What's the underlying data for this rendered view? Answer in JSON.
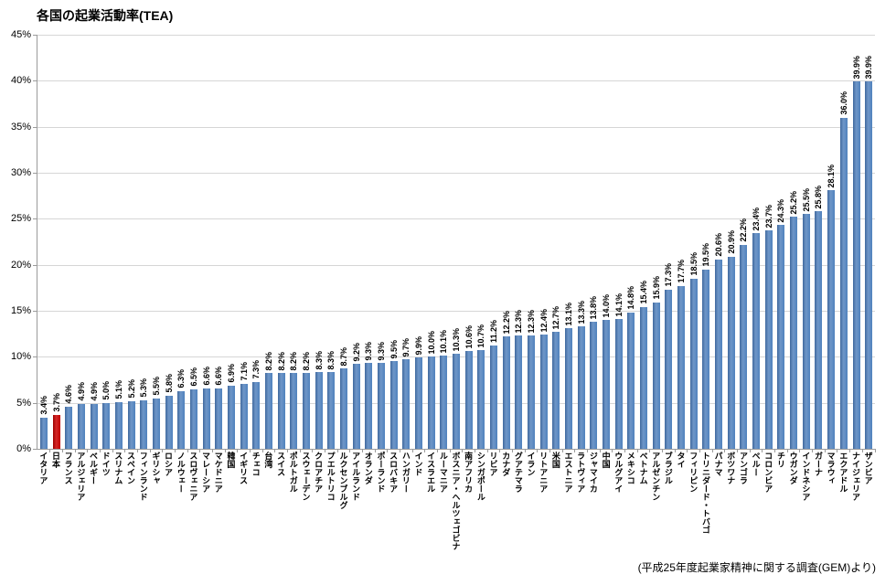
{
  "title": "各国の起業活動率(TEA)",
  "source_note": "(平成25年度起業家精神に関する調査(GEM)より)",
  "colors": {
    "bar": "#4F81BD",
    "bar_gradient_dark": "#40699E",
    "bar_gradient_light": "#6F97C8",
    "highlight": "#C00000",
    "highlight_gradient_dark": "#A00000",
    "highlight_gradient_light": "#D42A2A",
    "gridline": "#D6D6D6",
    "axis": "#9B9B9B",
    "text": "#000000"
  },
  "y_axis": {
    "ticks": [
      "45%",
      "40%",
      "35%",
      "30%",
      "25%",
      "20%",
      "15%",
      "10%",
      "5%",
      "0%"
    ],
    "min": 0,
    "max": 45,
    "step": 5
  },
  "chart_data": {
    "type": "bar",
    "title": "各国の起業活動率(TEA)",
    "xlabel": "",
    "ylabel": "",
    "unit": "%",
    "ylim": [
      0,
      45
    ],
    "grid": true,
    "legend": "none",
    "highlight_category": "日本",
    "highlight_index": 1,
    "categories": [
      "イタリア",
      "日本",
      "フランス",
      "アルジェリア",
      "ベルギー",
      "ドイツ",
      "スリナム",
      "スペイン",
      "フィンランド",
      "ギリシャ",
      "ロシア",
      "ノルウェー",
      "スロヴェニア",
      "マレーシア",
      "マケドニア",
      "韓国",
      "イギリス",
      "チェコ",
      "台湾",
      "スイス",
      "ポルトガル",
      "スウェーデン",
      "クロアチア",
      "プエルトリコ",
      "ルクセンブルグ",
      "アイルランド",
      "オランダ",
      "ポーランド",
      "スロバキア",
      "ハンガリー",
      "インド",
      "イスラエル",
      "ルーマニア",
      "ボスニア・ヘルツェゴビナ",
      "南アフリカ",
      "シンガポール",
      "リビア",
      "カナダ",
      "グアテマラ",
      "イラン",
      "リトアニア",
      "米国",
      "エストニア",
      "ラトヴィア",
      "ジャマイカ",
      "中国",
      "ウルグアイ",
      "メキシコ",
      "ベトナム",
      "アルゼンチン",
      "ブラジル",
      "タイ",
      "フィリピン",
      "トリニダード・トバゴ",
      "パナマ",
      "ボツワナ",
      "アンゴラ",
      "ペルー",
      "コロンビア",
      "チリ",
      "ウガンダ",
      "インドネシア",
      "ガーナ",
      "マラウィ",
      "エクアドル",
      "ナイジェリア",
      "ザンビア"
    ],
    "values": [
      3.4,
      3.7,
      4.6,
      4.9,
      4.9,
      5.0,
      5.1,
      5.2,
      5.3,
      5.5,
      5.8,
      6.3,
      6.5,
      6.6,
      6.6,
      6.9,
      7.1,
      7.3,
      8.2,
      8.2,
      8.2,
      8.2,
      8.3,
      8.3,
      8.7,
      9.2,
      9.3,
      9.3,
      9.5,
      9.7,
      9.9,
      10.0,
      10.1,
      10.3,
      10.6,
      10.7,
      11.2,
      12.2,
      12.3,
      12.3,
      12.4,
      12.7,
      13.1,
      13.3,
      13.8,
      14.0,
      14.1,
      14.8,
      15.4,
      15.9,
      17.3,
      17.7,
      18.5,
      19.5,
      20.6,
      20.9,
      22.2,
      23.4,
      23.7,
      24.3,
      25.2,
      25.5,
      25.8,
      28.1,
      36.0,
      39.9,
      39.9
    ]
  }
}
